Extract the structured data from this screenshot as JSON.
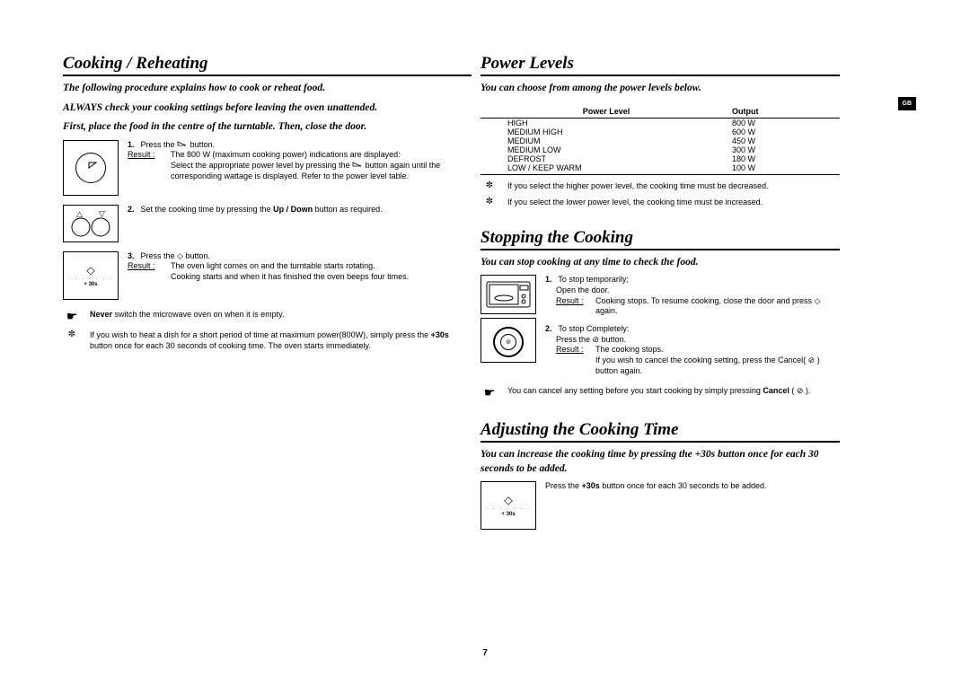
{
  "page_number": "7",
  "gb_label": "GB",
  "left": {
    "heading": "Cooking / Reheating",
    "intro1": "The following procedure explains how to cook or reheat food.",
    "intro2": "ALWAYS check your cooking settings before leaving the oven unattended.",
    "intro3": "First, place the food in the centre of the turntable. Then, close the door.",
    "step1_num": "1.",
    "step1_line1_a": "Press the ",
    "step1_line1_b": " button.",
    "step1_result_label": "Result :",
    "step1_result1": "The 800 W (maximum cooking power) indications are displayed:",
    "step1_result2_a": "Select the appropriate power level by pressing the ",
    "step1_result2_b": " button again until the corresponding wattage is displayed. Refer to the power level table.",
    "step2_num": "2.",
    "step2_text_a": "Set the cooking time by pressing the ",
    "step2_bold": "Up / Down",
    "step2_text_b": " button as required.",
    "step3_num": "3.",
    "step3_line1_a": "Press the ",
    "step3_line1_b": " button.",
    "step3_result_label": "Result :",
    "step3_result1": "The oven light comes on and the turntable starts rotating.",
    "step3_result2": "Cooking starts and when it has finished the oven beeps four times.",
    "note1_icon": "☛",
    "note1_bold": "Never",
    "note1_rest": " switch the microwave oven on when it is empty.",
    "note2_icon": "✼",
    "note2_a": "If you wish to heat a dish for a short period of time at maximum power(800W), simply press the ",
    "note2_bold": "+30s",
    "note2_b": " button once for each 30 seconds of cooking time. The oven starts immediately.",
    "plus30_label": "+ 30s"
  },
  "right": {
    "power_heading": "Power Levels",
    "power_intro": "You can choose from among the power levels below.",
    "table_hdr1": "Power Level",
    "table_hdr2": "Output",
    "rows": [
      {
        "level": "HIGH",
        "output": "800 W"
      },
      {
        "level": "MEDIUM HIGH",
        "output": "600 W"
      },
      {
        "level": "MEDIUM",
        "output": "450 W"
      },
      {
        "level": "MEDIUM LOW",
        "output": "300 W"
      },
      {
        "level": "DEFROST",
        "output": "180 W"
      },
      {
        "level": "LOW / KEEP WARM",
        "output": "100 W"
      }
    ],
    "pl_note1_icon": "✼",
    "pl_note1": "If you select the higher power level, the cooking time must be decreased.",
    "pl_note2_icon": "✼",
    "pl_note2": "If you select the lower power level, the cooking time must be increased.",
    "stop_heading": "Stopping the Cooking",
    "stop_intro": "You can stop cooking at any time to check the food.",
    "stop1_num": "1.",
    "stop1_l1": "To stop temporarily;",
    "stop1_l2": "Open the door.",
    "stop1_result_label": "Result :",
    "stop1_result_a": "Cooking stops. To resume cooking, close the door and press ",
    "stop1_result_b": " again.",
    "stop2_num": "2.",
    "stop2_l1": "To stop Completely:",
    "stop2_l2_a": "Press the ",
    "stop2_l2_b": " button.",
    "stop2_result_label": "Result :",
    "stop2_result": "The cooking stops.",
    "stop2_extra_a": "If you wish to cancel the cooking setting, press the Cancel( ",
    "stop2_extra_b": " ) button again.",
    "stop_note_icon": "☛",
    "stop_note_a": "You can cancel any setting before you start cooking by simply pressing ",
    "stop_note_bold": "Cancel",
    "stop_note_b": "( ",
    "stop_note_c": " ).",
    "adjust_heading": "Adjusting the Cooking Time",
    "adjust_intro": "You can increase the cooking time by pressing the +30s button once for each 30 seconds to be added.",
    "adjust_step_a": "Press the ",
    "adjust_step_bold": "+30s",
    "adjust_step_b": " button once for each 30 seconds to be added.",
    "plus30_label": "+ 30s"
  }
}
